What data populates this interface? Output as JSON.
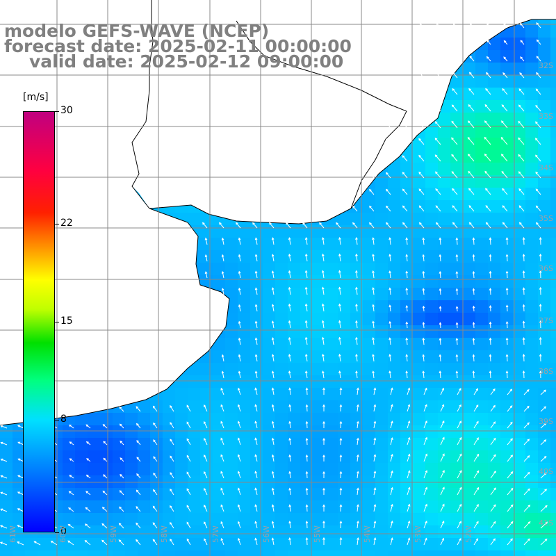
{
  "title": {
    "line1": "modelo GEFS-WAVE (NCEP)",
    "line2": "forecast date: 2025-02-11 00:00:00",
    "line3": "valid date: 2025-02-12 09:00:00"
  },
  "colorbar": {
    "unit": "[m/s]",
    "min": 0,
    "max": 30,
    "ticks": [
      "30",
      "22",
      "15",
      "8",
      "0"
    ],
    "tick_values": [
      30,
      22,
      15,
      8,
      0
    ],
    "colors": [
      "#0000ff",
      "#0070ff",
      "#00e0ff",
      "#00ff80",
      "#00e000",
      "#c0ff00",
      "#ffff00",
      "#ff9000",
      "#ff2000",
      "#c00080"
    ]
  },
  "map": {
    "variable": "wind speed",
    "land_color": "#ffffff",
    "coastline_color": "#000000",
    "grid_color": "#888888",
    "lat_labels": [
      "32S",
      "33S",
      "34S",
      "35S",
      "36S",
      "37S",
      "38S",
      "39S",
      "40S",
      "41S"
    ],
    "lon_labels": [
      "61W",
      "60W",
      "59W",
      "58W",
      "57W",
      "56W",
      "55W",
      "54W",
      "53W",
      "52W"
    ]
  }
}
